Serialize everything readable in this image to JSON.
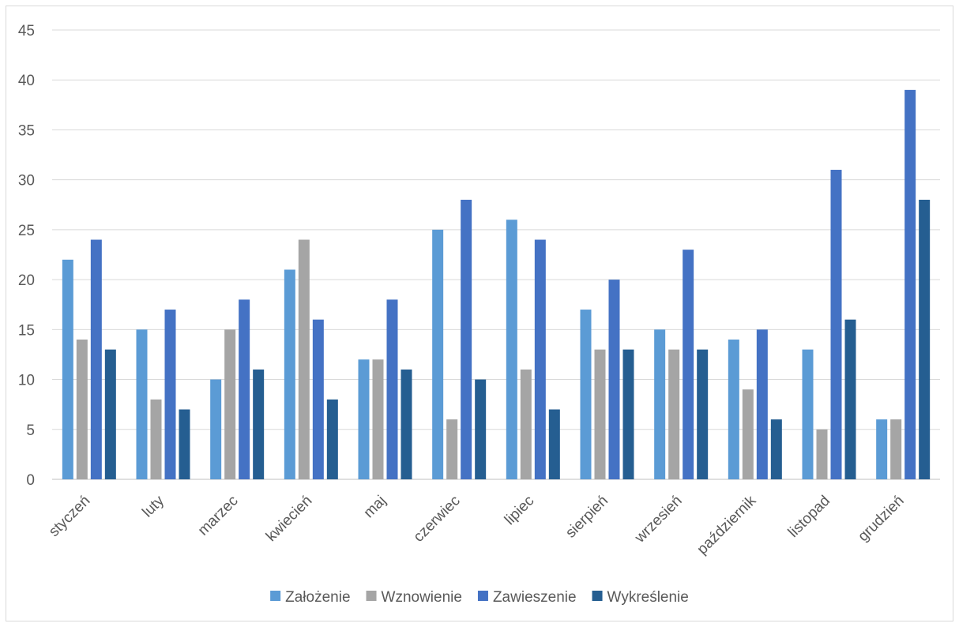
{
  "chart_data": {
    "type": "bar",
    "title": "",
    "xlabel": "",
    "ylabel": "",
    "ylim": [
      0,
      45
    ],
    "ytick_step": 5,
    "grid": true,
    "legend_position": "bottom",
    "categories": [
      "styczeń",
      "luty",
      "marzec",
      "kwiecień",
      "maj",
      "czerwiec",
      "lipiec",
      "sierpień",
      "wrzesień",
      "październik",
      "listopad",
      "grudzień"
    ],
    "series": [
      {
        "name": "Założenie",
        "color": "#5b9bd5",
        "values": [
          22,
          15,
          10,
          21,
          12,
          25,
          26,
          17,
          15,
          14,
          13,
          6
        ]
      },
      {
        "name": "Wznowienie",
        "color": "#a5a5a5",
        "values": [
          14,
          8,
          15,
          24,
          12,
          6,
          11,
          13,
          13,
          9,
          5,
          6
        ]
      },
      {
        "name": "Zawieszenie",
        "color": "#4472c4",
        "values": [
          24,
          17,
          18,
          16,
          18,
          28,
          24,
          20,
          23,
          15,
          31,
          39
        ]
      },
      {
        "name": "Wykreślenie",
        "color": "#255e91",
        "values": [
          13,
          7,
          11,
          8,
          11,
          10,
          7,
          13,
          13,
          6,
          16,
          28
        ]
      }
    ]
  }
}
